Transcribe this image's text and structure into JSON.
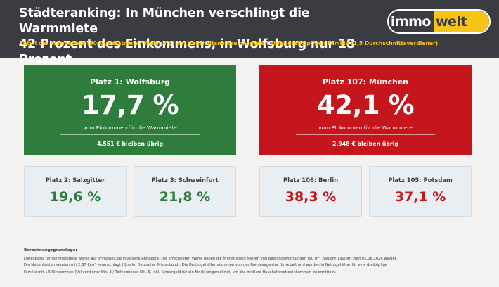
{
  "header": {
    "title_line1": "Städteranking: In München verschlingt die Warmmiete",
    "title_line2": "42 Prozent des Einkommens, in Wolfsburg nur 18 Prozent",
    "subtitle": "Anteil der Warmmiete (90-Quadratmeter-Wohnung) am Haushaltsnettoeinkommen einer dreiköpfigen Familie (1,5 Durchschnittsverdiener)",
    "logo_left": "immo",
    "logo_right": "welt"
  },
  "colors": {
    "header_bg": "#3b3c41",
    "accent_yellow": "#f6c318",
    "green": "#2f7d3c",
    "red": "#c4161c",
    "small_card_bg": "#e9eef3"
  },
  "top_cards": [
    {
      "rank": "Platz 1: Wolfsburg",
      "percent": "17,7 %",
      "description": "vom Einkommen für die Warmmiete",
      "remaining": "4.551 € bleiben übrig"
    },
    {
      "rank": "Platz 107: München",
      "percent": "42,1 %",
      "description": "vom Einkommen für die Warmmiete",
      "remaining": "2.948 € bleiben übrig"
    }
  ],
  "small_cards": [
    {
      "rank": "Platz 2: Salzgitter",
      "percent": "19,6 %"
    },
    {
      "rank": "Platz 3: Schweinfurt",
      "percent": "21,8 %"
    },
    {
      "rank": "Platz 106: Berlin",
      "percent": "38,3 %"
    },
    {
      "rank": "Platz 105: Potsdam",
      "percent": "37,1 %"
    }
  ],
  "footer": {
    "title": "Berechnungsgrundlage:",
    "line1": "Datenbasis für die Mietpreise waren auf immowelt.de inserierte Angebote. Die errechneten Werte geben die monatlichen Mieten von Bestandswohnungen (90 m², Baujahr 1990er) zum 01.06.2026 wieder.",
    "line2": "Die Nebenkosten wurden mit 2,67 €/m² veranschlagt (Quelle: Deutscher Mieterbund). Die Bruttogehälter stammen von der Bundesagentur für Arbeit und wurden in Nettogehälter für eine dreiköpfige",
    "line3": "Familie mit 1,5 Einkommen (Vollverdiener Stk. 3 / Teilverdiener Stk. 5, inkl. Kindergeld für ein Kind) umgerechnet, um das mittlere Haushaltsnettoeinkommen zu ermitteln."
  }
}
